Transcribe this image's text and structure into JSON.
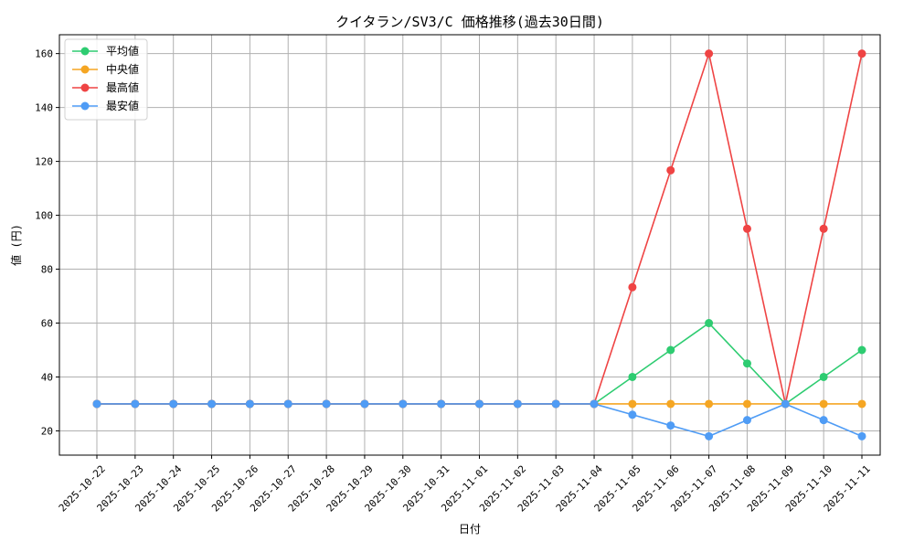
{
  "chart_data": {
    "type": "line",
    "title": "クイタラン/SV3/C 価格推移(過去30日間)",
    "xlabel": "日付",
    "ylabel": "値 (円)",
    "categories": [
      "2025-10-22",
      "2025-10-23",
      "2025-10-24",
      "2025-10-25",
      "2025-10-26",
      "2025-10-27",
      "2025-10-28",
      "2025-10-29",
      "2025-10-30",
      "2025-10-31",
      "2025-11-01",
      "2025-11-02",
      "2025-11-03",
      "2025-11-04",
      "2025-11-05",
      "2025-11-06",
      "2025-11-07",
      "2025-11-08",
      "2025-11-09",
      "2025-11-10",
      "2025-11-11"
    ],
    "ylim": [
      11,
      167
    ],
    "yticks": [
      20,
      40,
      60,
      80,
      100,
      120,
      140,
      160
    ],
    "grid": true,
    "legend_position": "top-left",
    "series": [
      {
        "name": "平均値",
        "color": "#2ecc71",
        "values": [
          30,
          30,
          30,
          30,
          30,
          30,
          30,
          30,
          30,
          30,
          30,
          30,
          30,
          30,
          40,
          50,
          60,
          45,
          30,
          40,
          50
        ]
      },
      {
        "name": "中央値",
        "color": "#f5a623",
        "values": [
          30,
          30,
          30,
          30,
          30,
          30,
          30,
          30,
          30,
          30,
          30,
          30,
          30,
          30,
          30,
          30,
          30,
          30,
          30,
          30,
          30
        ]
      },
      {
        "name": "最高値",
        "color": "#ef4444",
        "values": [
          30,
          30,
          30,
          30,
          30,
          30,
          30,
          30,
          30,
          30,
          30,
          30,
          30,
          30,
          73.3,
          116.7,
          160,
          95,
          30,
          95,
          160
        ]
      },
      {
        "name": "最安値",
        "color": "#4f9cf5",
        "values": [
          30,
          30,
          30,
          30,
          30,
          30,
          30,
          30,
          30,
          30,
          30,
          30,
          30,
          30,
          26,
          22,
          18,
          24,
          30,
          24,
          18
        ]
      }
    ]
  }
}
